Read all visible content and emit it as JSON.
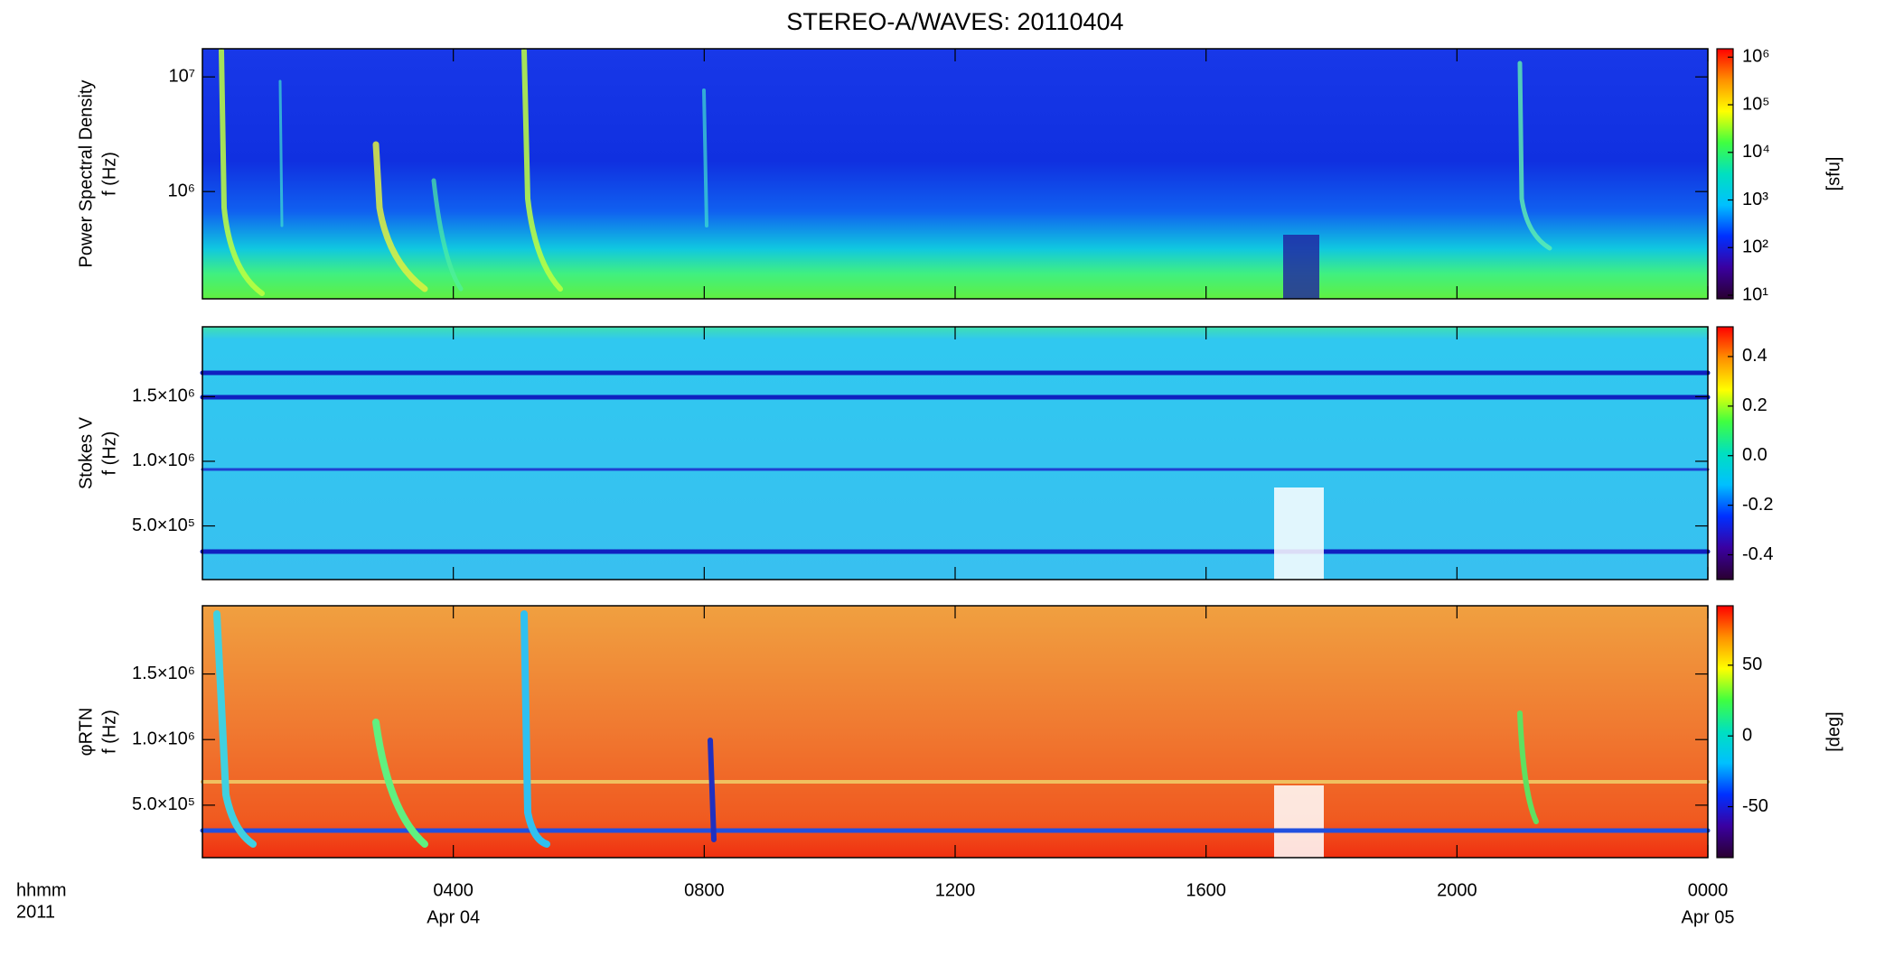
{
  "chart_data": {
    "type": "spectrogram",
    "title": "STEREO-A/WAVES: 20110404",
    "xlim": [
      0,
      24
    ],
    "xticks": [
      {
        "value": 4,
        "label": "0400"
      },
      {
        "value": 8,
        "label": "0800"
      },
      {
        "value": 12,
        "label": "1200"
      },
      {
        "value": 16,
        "label": "1600"
      },
      {
        "value": 20,
        "label": "2000"
      },
      {
        "value": 24,
        "label": "0000"
      }
    ],
    "date_labels": [
      {
        "value": 4,
        "label": "Apr 04"
      },
      {
        "value": 24,
        "label": "Apr 05"
      }
    ],
    "xlabel": [
      "hhmm",
      "2011"
    ],
    "colormap": [
      "#2a0030",
      "#3a00a0",
      "#0030ff",
      "#00c0ff",
      "#00e0c0",
      "#40ff40",
      "#ffff00",
      "#ff9000",
      "#ff0000"
    ],
    "panels": [
      {
        "ylabel": [
          "Power Spectral Density",
          "f (Hz)"
        ],
        "ylog": true,
        "ylim": [
          116000,
          17600000
        ],
        "yticks": [
          {
            "value": 1000000,
            "label": "10⁶"
          },
          {
            "value": 10000000,
            "label": "10⁷"
          }
        ],
        "clog": true,
        "clim": [
          8.4,
          1500000
        ],
        "cticks": [
          {
            "value": 10,
            "label": "10¹"
          },
          {
            "value": 100,
            "label": "10²"
          },
          {
            "value": 1000,
            "label": "10³"
          },
          {
            "value": 10000,
            "label": "10⁴"
          },
          {
            "value": 100000,
            "label": "10⁵"
          },
          {
            "value": 1000000,
            "label": "10⁶"
          }
        ],
        "clabel": "[sfu]"
      },
      {
        "ylabel": [
          "Stokes V",
          "f (Hz)"
        ],
        "ylog": false,
        "ylim": [
          85000,
          2040000
        ],
        "yticks": [
          {
            "value": 500000,
            "label": "5.0×10⁵"
          },
          {
            "value": 1000000,
            "label": "1.0×10⁶"
          },
          {
            "value": 1500000,
            "label": "1.5×10⁶"
          }
        ],
        "clog": false,
        "clim": [
          -0.5,
          0.52
        ],
        "cticks": [
          -0.4,
          -0.2,
          {
            "value": 0,
            "label": "0.0"
          },
          0.2,
          0.4
        ]
      },
      {
        "ylabel": [
          "φRTN",
          "f (Hz)"
        ],
        "ylog": false,
        "ylim": [
          100000,
          2020000
        ],
        "yticks": [
          {
            "value": 500000,
            "label": "5.0×10⁵"
          },
          {
            "value": 1000000,
            "label": "1.0×10⁶"
          },
          {
            "value": 1500000,
            "label": "1.5×10⁶"
          }
        ],
        "clog": false,
        "clim": [
          -86,
          92
        ],
        "cticks": [
          -50,
          0,
          50
        ],
        "clabel": "[deg]"
      }
    ]
  }
}
